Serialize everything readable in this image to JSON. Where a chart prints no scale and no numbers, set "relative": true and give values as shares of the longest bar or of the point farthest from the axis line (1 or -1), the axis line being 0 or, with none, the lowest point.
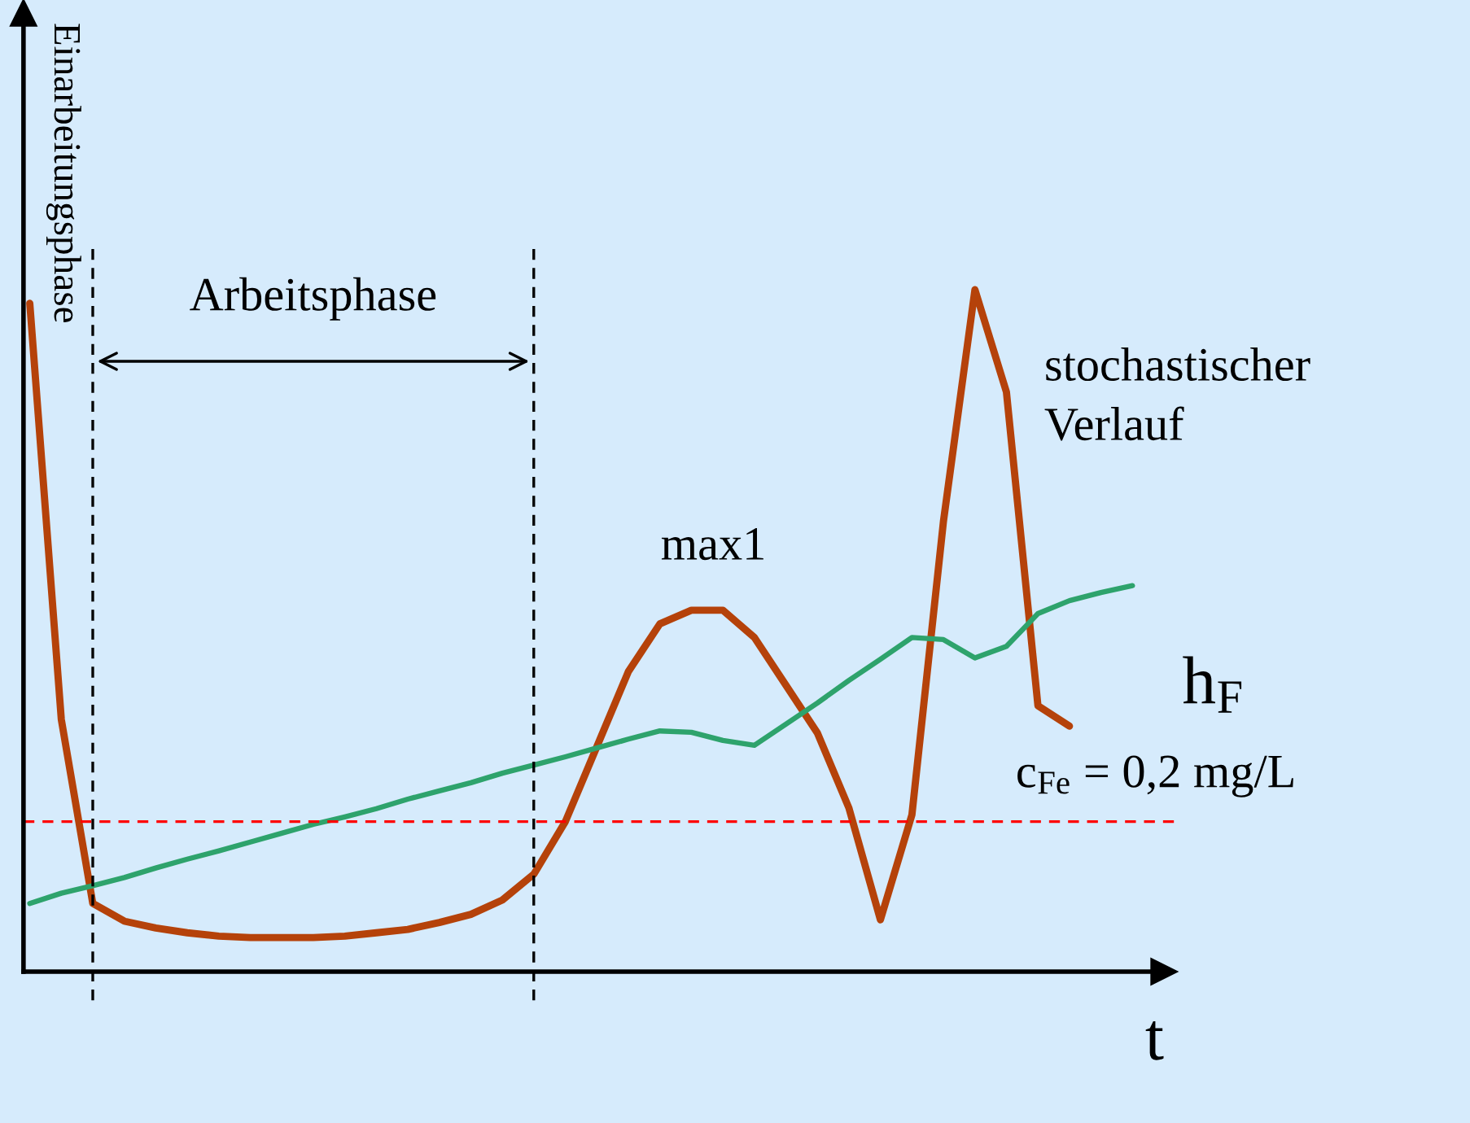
{
  "chart_data": {
    "type": "line",
    "relative": true,
    "xlabel": "t",
    "categories": [
      null,
      null,
      null,
      null,
      null,
      null,
      null,
      null,
      null,
      null,
      null,
      null,
      null,
      null,
      null,
      null,
      null,
      null,
      null,
      null,
      null,
      null,
      null,
      null,
      null,
      null,
      null,
      null,
      null,
      null,
      null,
      null,
      null,
      null,
      null,
      null,
      null
    ],
    "series": [
      {
        "color": "#b5420a",
        "values": [
          0.98,
          0.37,
          0.1,
          0.074,
          0.064,
          0.057,
          0.052,
          0.05,
          0.05,
          0.05,
          0.052,
          0.057,
          0.062,
          0.072,
          0.084,
          0.105,
          0.143,
          0.22,
          0.33,
          0.44,
          0.51,
          0.53,
          0.53,
          0.49,
          0.42,
          0.35,
          0.24,
          0.076,
          0.23,
          0.66,
          1.0,
          0.85,
          0.39,
          0.36,
          null,
          null,
          null
        ]
      },
      {
        "name": "h$_{F}$",
        "color": "#2ea36c",
        "values": [
          0.1,
          0.115,
          0.126,
          0.138,
          0.152,
          0.165,
          0.177,
          0.19,
          0.203,
          0.216,
          0.227,
          0.239,
          0.253,
          0.265,
          0.277,
          0.291,
          0.303,
          0.315,
          0.328,
          0.341,
          0.353,
          0.351,
          0.339,
          0.332,
          0.363,
          0.394,
          0.427,
          0.458,
          0.49,
          0.487,
          0.46,
          0.477,
          0.525,
          0.544,
          0.556,
          0.566,
          null
        ]
      }
    ],
    "ref_lines": [
      {
        "axis": "y",
        "value": 0.22,
        "label": "c$_{Fe}$ = 0,2 mg/L",
        "color": "#ff0000",
        "line_style": "dashed"
      }
    ],
    "annotations": [
      "Einarbeitungsphase",
      "Arbeitsphase",
      "max1",
      "stochastischer\nVerlauf"
    ],
    "tick_labels": false,
    "legend": false,
    "grid": false,
    "marker": "none",
    "line_style": "solid"
  }
}
